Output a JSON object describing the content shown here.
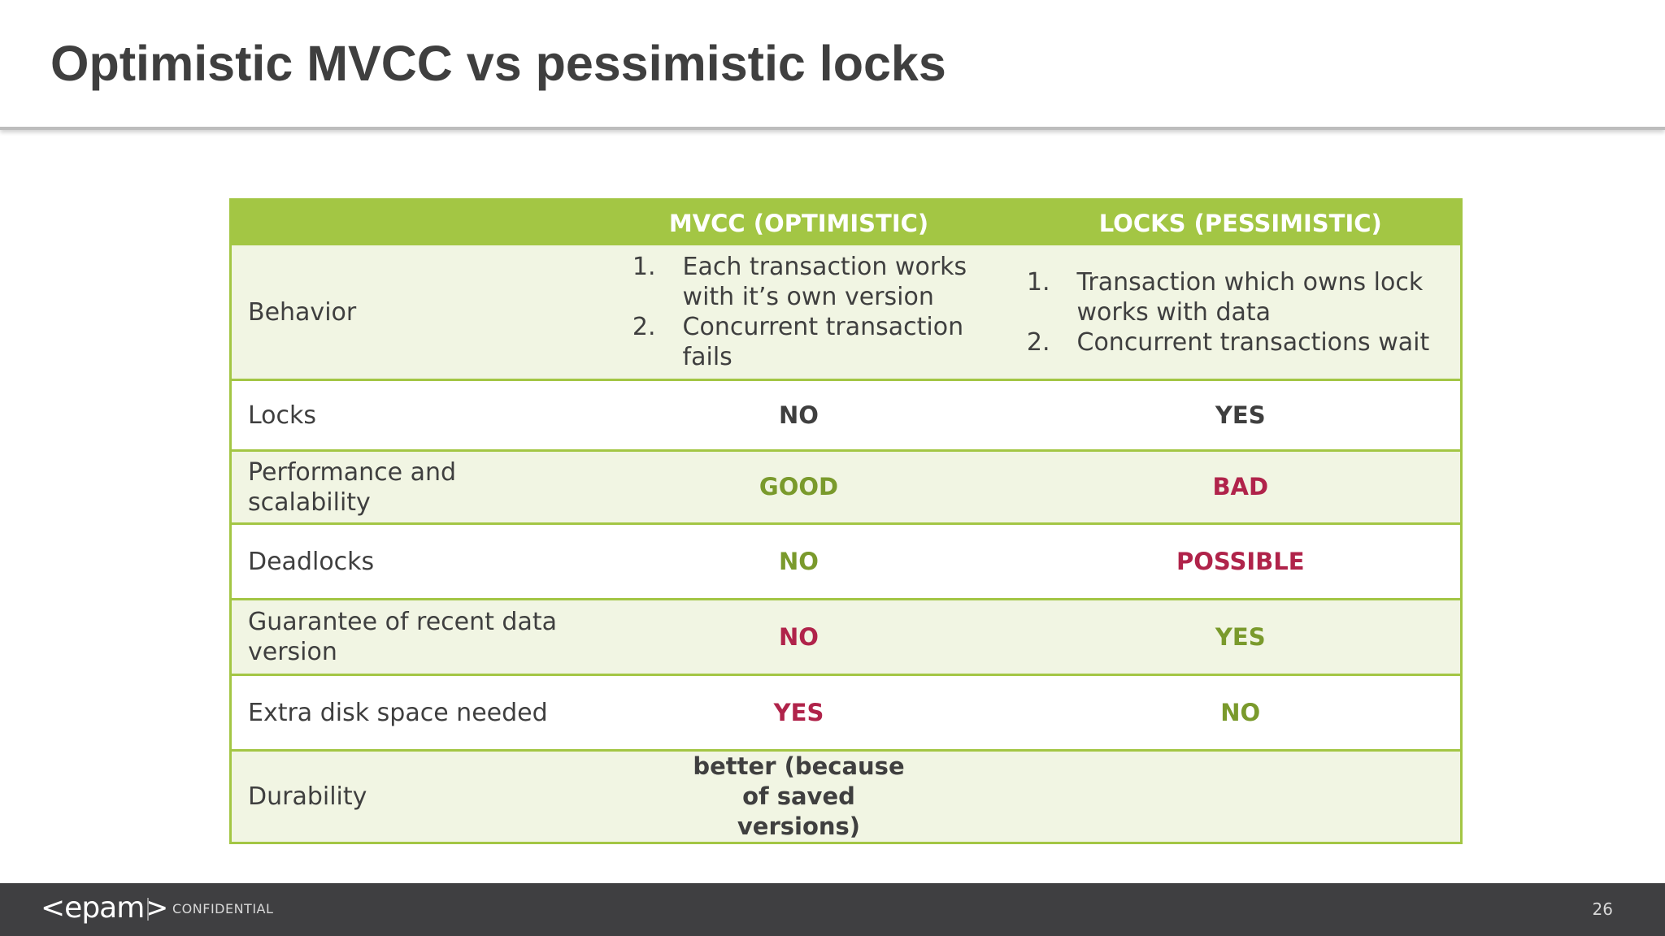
{
  "slide": {
    "title": "Optimistic MVCC vs pessimistic locks",
    "page_number": "26"
  },
  "table": {
    "headers": [
      "",
      "MVCC (OPTIMISTIC)",
      "LOCKS (PESSIMISTIC)"
    ],
    "behavior": {
      "label": "Behavior",
      "mvcc": [
        {
          "num": "1.",
          "text": "Each transaction works with it’s own version"
        },
        {
          "num": "2.",
          "text": "Concurrent transaction fails"
        }
      ],
      "locks": [
        {
          "num": "1.",
          "text": "Transaction which owns lock works with data"
        },
        {
          "num": "2.",
          "text": "Concurrent transactions wait"
        }
      ]
    },
    "rows": [
      {
        "label": "Locks",
        "mvcc": "NO",
        "locks": "YES"
      },
      {
        "label": "Performance and scalability",
        "mvcc": "GOOD",
        "locks": "BAD"
      },
      {
        "label": "Deadlocks",
        "mvcc": "NO",
        "locks": "POSSIBLE"
      },
      {
        "label": "Guarantee of recent data version",
        "mvcc": "NO",
        "locks": "YES"
      },
      {
        "label": "Extra disk space needed",
        "mvcc": "YES",
        "locks": "NO"
      },
      {
        "label": "Durability",
        "mvcc": "better (because of saved versions)",
        "locks": ""
      }
    ]
  },
  "colors": {
    "accent_green": "#a3c644",
    "positive": "#7a9a2c",
    "negative": "#b0234a",
    "text": "#3f3f3f",
    "footer_bg": "#3f3f41"
  },
  "footer": {
    "logo": "<epam>",
    "confidential": "CONFIDENTIAL"
  }
}
